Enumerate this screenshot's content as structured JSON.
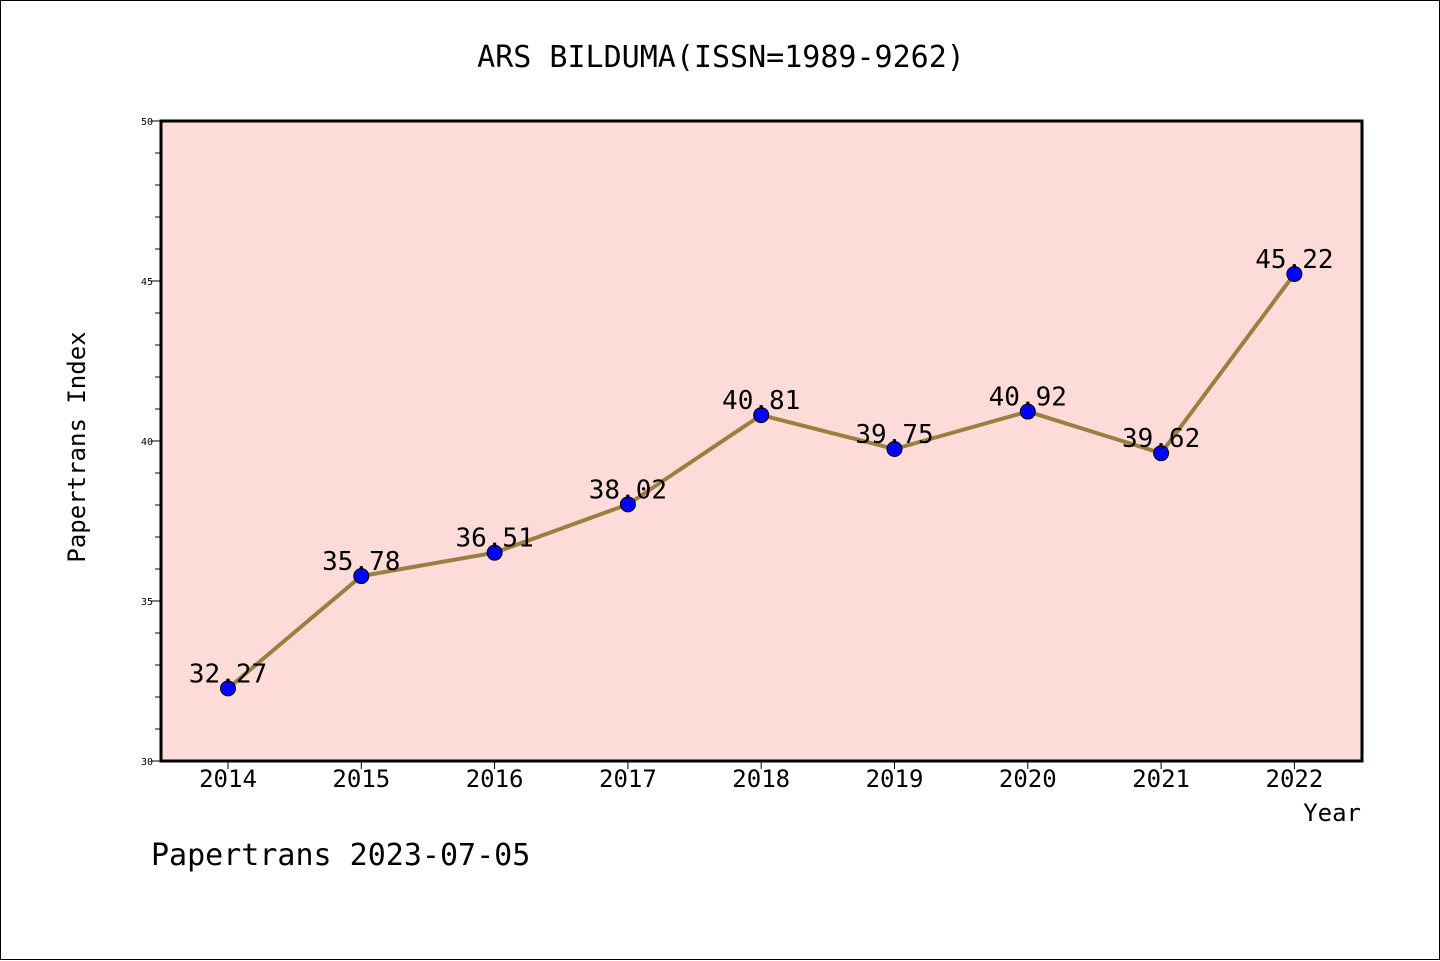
{
  "chart_data": {
    "type": "line",
    "title": "ARS BILDUMA(ISSN=1989-9262)",
    "xlabel": "Year",
    "ylabel": "Papertrans Index",
    "categories": [
      "2014",
      "2015",
      "2016",
      "2017",
      "2018",
      "2019",
      "2020",
      "2021",
      "2022"
    ],
    "series": [
      {
        "values": [
          32.27,
          35.78,
          36.51,
          38.02,
          40.81,
          39.75,
          40.92,
          39.62,
          45.22
        ],
        "labels": [
          "32.27",
          "35.78",
          "36.51",
          "38.02",
          "40.81",
          "39.75",
          "40.92",
          "39.62",
          "45.22"
        ]
      }
    ],
    "ylim": [
      30,
      50
    ],
    "yticks": [
      "30",
      "35",
      "40",
      "45",
      "50"
    ],
    "grid": false,
    "legend": "none",
    "colors": {
      "plot_background": "#fddbd8",
      "line": "#9a8040",
      "marker": "#0000ff"
    }
  },
  "footer": "Papertrans 2023-07-05"
}
